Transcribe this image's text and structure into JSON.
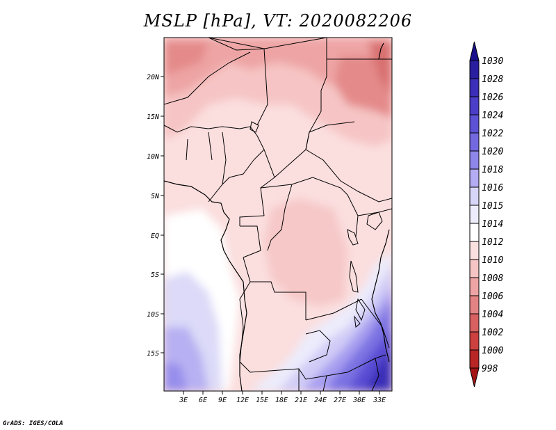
{
  "title": "MSLP [hPa], VT: 2020082206",
  "credit": "GrADS: IGES/COLA",
  "map": {
    "variable": "MSLP",
    "units": "hPa",
    "valid_time": "2020082206",
    "lat_labels": [
      "20N",
      "15N",
      "10N",
      "5N",
      "EQ",
      "5S",
      "10S",
      "15S"
    ],
    "lon_labels": [
      "3E",
      "6E",
      "9E",
      "12E",
      "15E",
      "18E",
      "21E",
      "24E",
      "27E",
      "30E",
      "33E"
    ]
  },
  "colorbar": {
    "labels": [
      "1030",
      "1028",
      "1026",
      "1024",
      "1022",
      "1020",
      "1018",
      "1016",
      "1015",
      "1014",
      "1012",
      "1010",
      "1008",
      "1006",
      "1004",
      "1002",
      "1000",
      "998"
    ],
    "colors": [
      "#1a0f8c",
      "#2a1ea0",
      "#3b2eb8",
      "#4b3ec8",
      "#5d52d6",
      "#7468e0",
      "#8f86ea",
      "#b3acf2",
      "#d8d6f8",
      "#ececfc",
      "#ffffff",
      "#fbe0e0",
      "#f6c4c4",
      "#eea4a4",
      "#e48383",
      "#d86060",
      "#cc4040",
      "#b82626",
      "#a31515"
    ]
  }
}
